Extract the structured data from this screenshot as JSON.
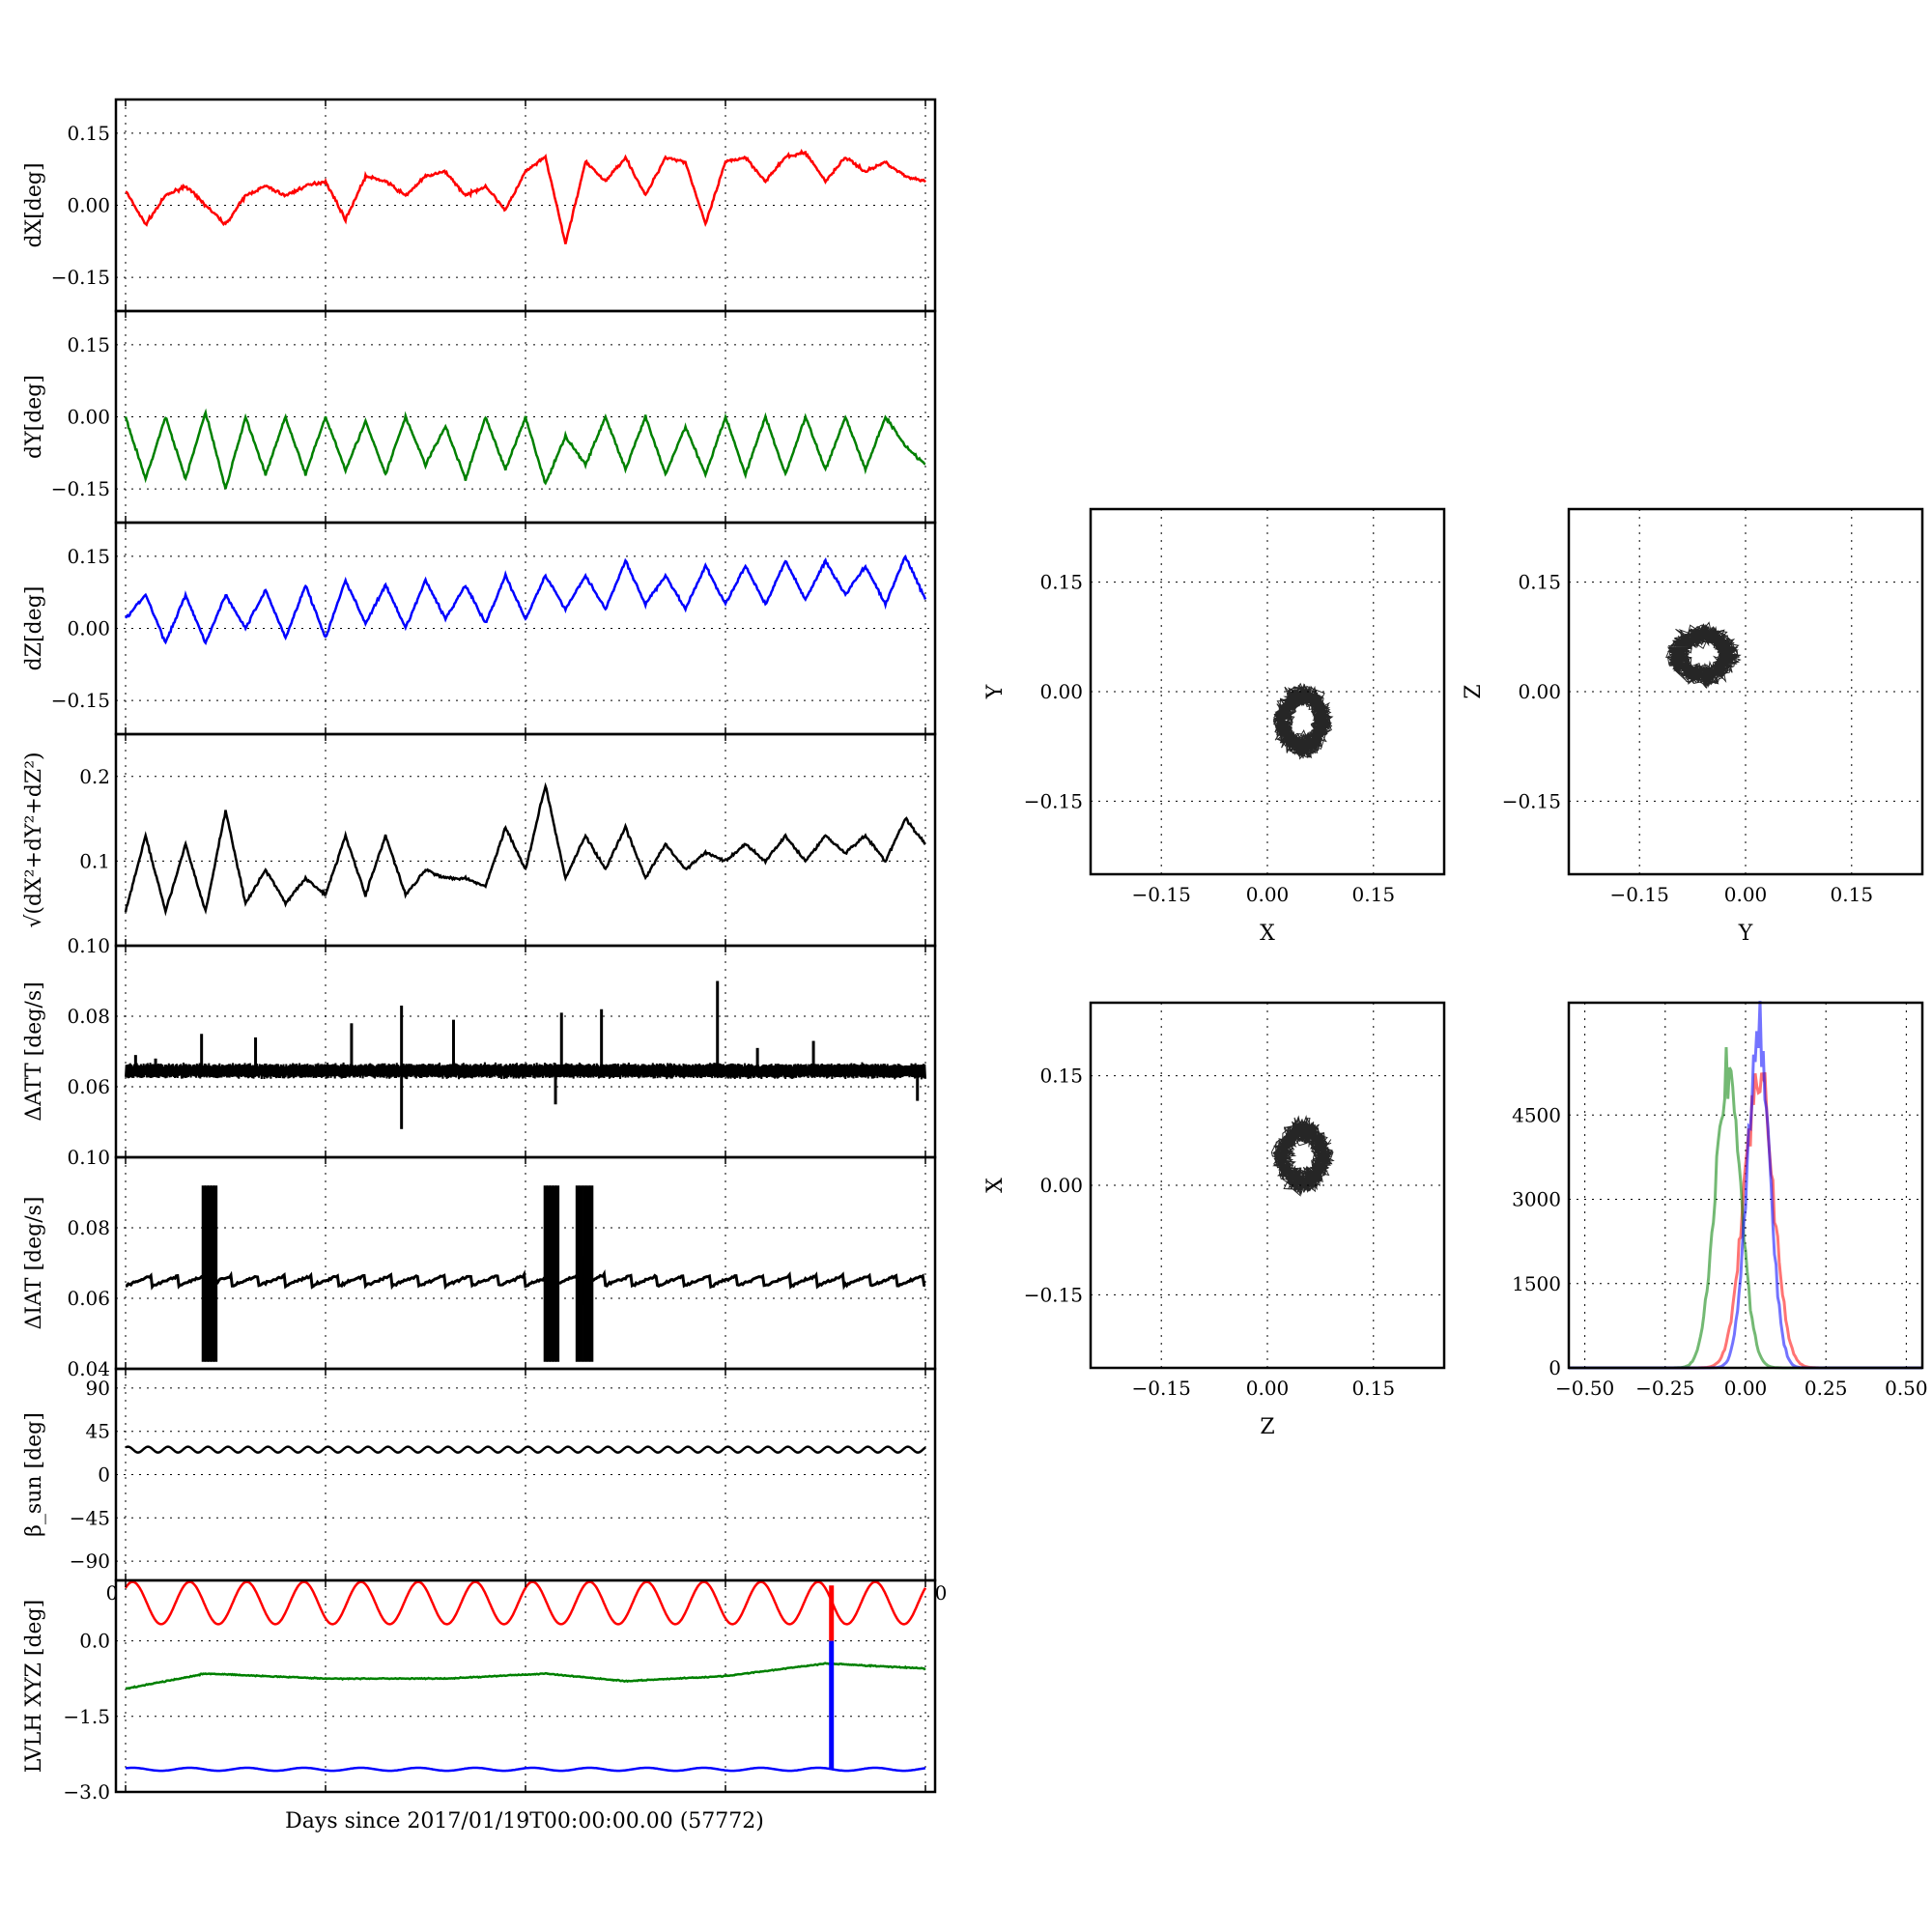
{
  "common_xlabel": "Days since 2017/01/19T00:00:00.00 (57772)",
  "colors": {
    "x": "#ff0000",
    "y": "#008000",
    "z": "#0000ff",
    "k": "#000000"
  },
  "chart_data": [
    {
      "id": "dX",
      "type": "line",
      "ylabel": "dX[deg]",
      "ylim": [
        -0.22,
        0.22
      ],
      "yticks": [
        -0.15,
        0.0,
        0.15
      ],
      "ytick_labels": [
        "−0.15",
        "0.00",
        "0.15"
      ],
      "xlim": [
        0,
        40
      ],
      "grid": true,
      "series": [
        {
          "color": "red",
          "x": [
            0,
            1,
            2,
            3,
            4,
            5,
            6,
            7,
            8,
            9,
            10,
            11,
            12,
            13,
            14,
            15,
            16,
            17,
            18,
            19,
            20,
            21,
            22,
            23,
            24,
            25,
            26,
            27,
            28,
            29,
            30,
            31,
            32,
            33,
            34,
            35,
            36,
            37,
            38,
            39,
            40
          ],
          "y": [
            0.03,
            -0.04,
            0.02,
            0.04,
            0.0,
            -0.04,
            0.02,
            0.04,
            0.02,
            0.04,
            0.05,
            -0.03,
            0.06,
            0.05,
            0.02,
            0.06,
            0.07,
            0.02,
            0.04,
            -0.01,
            0.07,
            0.1,
            -0.08,
            0.09,
            0.05,
            0.1,
            0.02,
            0.1,
            0.09,
            -0.04,
            0.09,
            0.1,
            0.05,
            0.1,
            0.11,
            0.05,
            0.1,
            0.07,
            0.09,
            0.06,
            0.05
          ]
        }
      ]
    },
    {
      "id": "dY",
      "type": "line",
      "ylabel": "dY[deg]",
      "ylim": [
        -0.22,
        0.22
      ],
      "yticks": [
        -0.15,
        0.0,
        0.15
      ],
      "ytick_labels": [
        "−0.15",
        "0.00",
        "0.15"
      ],
      "xlim": [
        0,
        40
      ],
      "grid": true,
      "series": [
        {
          "color": "green",
          "x": [
            0,
            1,
            2,
            3,
            4,
            5,
            6,
            7,
            8,
            9,
            10,
            11,
            12,
            13,
            14,
            15,
            16,
            17,
            18,
            19,
            20,
            21,
            22,
            23,
            24,
            25,
            26,
            27,
            28,
            29,
            30,
            31,
            32,
            33,
            34,
            35,
            36,
            37,
            38,
            39,
            40
          ],
          "y": [
            0.0,
            -0.13,
            0.0,
            -0.13,
            0.01,
            -0.15,
            0.0,
            -0.12,
            0.0,
            -0.12,
            0.0,
            -0.11,
            -0.01,
            -0.12,
            0.0,
            -0.1,
            -0.02,
            -0.13,
            0.0,
            -0.11,
            0.0,
            -0.14,
            -0.04,
            -0.1,
            0.0,
            -0.11,
            0.0,
            -0.12,
            -0.02,
            -0.12,
            0.0,
            -0.12,
            0.0,
            -0.12,
            0.0,
            -0.11,
            0.0,
            -0.11,
            0.0,
            -0.06,
            -0.1
          ]
        }
      ]
    },
    {
      "id": "dZ",
      "type": "line",
      "ylabel": "dZ[deg]",
      "ylim": [
        -0.22,
        0.22
      ],
      "yticks": [
        -0.15,
        0.0,
        0.15
      ],
      "ytick_labels": [
        "−0.15",
        "0.00",
        "0.15"
      ],
      "xlim": [
        0,
        40
      ],
      "grid": true,
      "series": [
        {
          "color": "blue",
          "x": [
            0,
            1,
            2,
            3,
            4,
            5,
            6,
            7,
            8,
            9,
            10,
            11,
            12,
            13,
            14,
            15,
            16,
            17,
            18,
            19,
            20,
            21,
            22,
            23,
            24,
            25,
            26,
            27,
            28,
            29,
            30,
            31,
            32,
            33,
            34,
            35,
            36,
            37,
            38,
            39,
            40
          ],
          "y": [
            0.02,
            0.07,
            -0.03,
            0.07,
            -0.03,
            0.07,
            0.0,
            0.08,
            -0.02,
            0.09,
            -0.02,
            0.1,
            0.01,
            0.09,
            0.0,
            0.1,
            0.02,
            0.09,
            0.01,
            0.11,
            0.02,
            0.11,
            0.04,
            0.11,
            0.04,
            0.14,
            0.05,
            0.11,
            0.04,
            0.13,
            0.05,
            0.13,
            0.05,
            0.14,
            0.06,
            0.14,
            0.07,
            0.13,
            0.05,
            0.15,
            0.06
          ]
        }
      ]
    },
    {
      "id": "dR",
      "type": "line",
      "ylabel": "√(dX²+dY²+dZ²)",
      "ylim": [
        0.0,
        0.25
      ],
      "yticks": [
        0.1,
        0.2
      ],
      "ytick_labels": [
        "0.1",
        "0.2"
      ],
      "xlim": [
        0,
        40
      ],
      "grid": true,
      "series": [
        {
          "color": "black",
          "x": [
            0,
            1,
            2,
            3,
            4,
            5,
            6,
            7,
            8,
            9,
            10,
            11,
            12,
            13,
            14,
            15,
            16,
            17,
            18,
            19,
            20,
            21,
            22,
            23,
            24,
            25,
            26,
            27,
            28,
            29,
            30,
            31,
            32,
            33,
            34,
            35,
            36,
            37,
            38,
            39,
            40
          ],
          "y": [
            0.04,
            0.13,
            0.04,
            0.12,
            0.04,
            0.16,
            0.05,
            0.09,
            0.05,
            0.08,
            0.06,
            0.13,
            0.06,
            0.13,
            0.06,
            0.09,
            0.08,
            0.08,
            0.07,
            0.14,
            0.09,
            0.19,
            0.08,
            0.13,
            0.09,
            0.14,
            0.08,
            0.12,
            0.09,
            0.11,
            0.1,
            0.12,
            0.1,
            0.13,
            0.1,
            0.13,
            0.11,
            0.13,
            0.1,
            0.15,
            0.12
          ]
        }
      ]
    },
    {
      "id": "dATT",
      "type": "line",
      "ylabel": "ΔATT [deg/s]",
      "ylim": [
        0.04,
        0.1
      ],
      "yticks": [
        0.06,
        0.08,
        0.1
      ],
      "ytick_labels": [
        "0.06",
        "0.08",
        "0.10"
      ],
      "xlim": [
        0,
        40
      ],
      "grid": true,
      "baseline": 0.0645,
      "spikes": [
        [
          0.5,
          0.069
        ],
        [
          1.5,
          0.068
        ],
        [
          3.8,
          0.075
        ],
        [
          6.5,
          0.074
        ],
        [
          11.3,
          0.078
        ],
        [
          13.8,
          0.083
        ],
        [
          16.4,
          0.079
        ],
        [
          21.8,
          0.081
        ],
        [
          23.8,
          0.082
        ],
        [
          29.6,
          0.09
        ],
        [
          31.6,
          0.071
        ],
        [
          34.4,
          0.073
        ],
        [
          13.8,
          0.048
        ],
        [
          21.5,
          0.055
        ],
        [
          39.6,
          0.056
        ]
      ],
      "series": [
        {
          "color": "black"
        }
      ]
    },
    {
      "id": "dIAT",
      "type": "line",
      "ylabel": "ΔIAT [deg/s]",
      "ylim": [
        0.04,
        0.1
      ],
      "yticks": [
        0.04,
        0.06,
        0.08,
        0.1
      ],
      "ytick_labels": [
        "0.04",
        "0.06",
        "0.08",
        "0.10"
      ],
      "xlim": [
        0,
        40
      ],
      "grid": true,
      "baseline": 0.065,
      "bursts": [
        [
          3.9,
          4.5
        ],
        [
          21.0,
          21.6
        ],
        [
          22.6,
          23.3
        ]
      ],
      "burst_range": [
        0.042,
        0.092
      ],
      "series": [
        {
          "color": "black"
        }
      ]
    },
    {
      "id": "beta",
      "type": "line",
      "ylabel": "β_sun [deg]",
      "ylim": [
        -110,
        110
      ],
      "yticks": [
        -90,
        -45,
        0,
        45,
        90
      ],
      "ytick_labels": [
        "−90",
        "−45",
        "0",
        "45",
        "90"
      ],
      "xlim": [
        0,
        40
      ],
      "grid": true,
      "series": [
        {
          "color": "black",
          "mean": 26,
          "amplitude": 3,
          "cycles": 40
        }
      ]
    },
    {
      "id": "lvlh",
      "type": "line",
      "ylabel": "LVLH XYZ [deg]",
      "ylim": [
        -3.0,
        1.2
      ],
      "yticks": [
        -3.0,
        -1.5,
        0.0
      ],
      "ytick_labels": [
        "−3.0",
        "−1.5",
        "0.0"
      ],
      "xlim": [
        0,
        40
      ],
      "grid": true,
      "xtick_labels_visible": [
        "0",
        "0"
      ],
      "series": [
        {
          "name": "X",
          "color": "red",
          "mean": 0.75,
          "amplitude": 0.42,
          "cycles": 14
        },
        {
          "name": "Y",
          "color": "green",
          "x": [
            0,
            4,
            10,
            16,
            21,
            25,
            30,
            35,
            40
          ],
          "y": [
            -0.95,
            -0.65,
            -0.75,
            -0.75,
            -0.65,
            -0.8,
            -0.7,
            -0.45,
            -0.55
          ]
        },
        {
          "name": "Z",
          "color": "blue",
          "mean": -2.55,
          "amplitude": 0.03,
          "cycles": 14
        }
      ],
      "spike": {
        "x": 35.3,
        "red_top": 1.1,
        "blue_top": 0.0,
        "bottom": -2.55
      }
    }
  ],
  "scatter_panels": [
    {
      "id": "XY",
      "type": "scatter",
      "xlabel": "X",
      "ylabel": "Y",
      "xlim": [
        -0.25,
        0.25
      ],
      "ylim": [
        -0.25,
        0.25
      ],
      "ticks": [
        -0.15,
        0.0,
        0.15
      ],
      "tick_labels": [
        "−0.15",
        "0.00",
        "0.15"
      ],
      "center": [
        0.05,
        -0.04
      ],
      "spread": [
        0.04,
        0.05
      ],
      "color": "black"
    },
    {
      "id": "YZ",
      "type": "scatter",
      "xlabel": "Y",
      "ylabel": "Z",
      "xlim": [
        -0.25,
        0.25
      ],
      "ylim": [
        -0.25,
        0.25
      ],
      "ticks": [
        -0.15,
        0.0,
        0.15
      ],
      "tick_labels": [
        "−0.15",
        "0.00",
        "0.15"
      ],
      "center": [
        -0.06,
        0.05
      ],
      "spread": [
        0.05,
        0.04
      ],
      "color": "black"
    },
    {
      "id": "ZX",
      "type": "scatter",
      "xlabel": "Z",
      "ylabel": "X",
      "xlim": [
        -0.25,
        0.25
      ],
      "ylim": [
        -0.25,
        0.25
      ],
      "ticks": [
        -0.15,
        0.0,
        0.15
      ],
      "tick_labels": [
        "−0.15",
        "0.00",
        "0.15"
      ],
      "center": [
        0.05,
        0.04
      ],
      "spread": [
        0.04,
        0.05
      ],
      "color": "black"
    }
  ],
  "histogram": {
    "id": "hist",
    "type": "bar",
    "xlim": [
      -0.55,
      0.55
    ],
    "ylim": [
      0,
      6500
    ],
    "xticks": [
      -0.5,
      -0.25,
      0.0,
      0.25,
      0.5
    ],
    "xtick_labels": [
      "−0.50",
      "−0.25",
      "0.00",
      "0.25",
      "0.50"
    ],
    "yticks": [
      0,
      1500,
      3000,
      4500
    ],
    "ytick_labels": [
      "0",
      "1500",
      "3000",
      "4500"
    ],
    "series": [
      {
        "name": "dX",
        "color": "red",
        "mean": 0.04,
        "sigma": 0.045,
        "peak": 5200
      },
      {
        "name": "dY",
        "color": "green",
        "mean": -0.055,
        "sigma": 0.04,
        "peak": 5200
      },
      {
        "name": "dZ",
        "color": "blue",
        "mean": 0.04,
        "sigma": 0.035,
        "peak": 5900
      }
    ]
  }
}
